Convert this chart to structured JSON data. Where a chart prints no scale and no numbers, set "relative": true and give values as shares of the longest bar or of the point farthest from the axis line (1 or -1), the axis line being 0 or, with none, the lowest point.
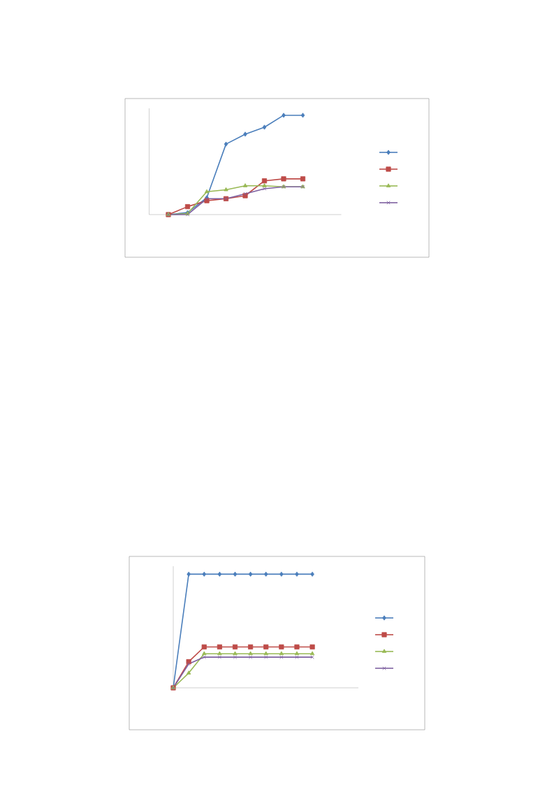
{
  "chart_data": [
    {
      "type": "line",
      "relative": true,
      "categories": [
        null,
        null,
        null,
        null,
        null,
        null,
        null,
        null
      ],
      "series": [
        {
          "color": "#4a7ebb",
          "marker": "diamond",
          "values": [
            0,
            0.02,
            0.17,
            0.71,
            0.81,
            0.88,
            1,
            1
          ]
        },
        {
          "color": "#be4b48",
          "marker": "square",
          "values": [
            0,
            0.08,
            0.14,
            0.16,
            0.19,
            0.34,
            0.36,
            0.36
          ]
        },
        {
          "color": "#98b954",
          "marker": "triangle",
          "values": [
            0,
            0.01,
            0.23,
            0.25,
            0.29,
            0.29,
            0.28,
            0.28
          ]
        },
        {
          "color": "#7d60a0",
          "marker": "cross",
          "values": [
            0,
            0,
            0.16,
            0.16,
            0.21,
            0.26,
            0.28,
            0.28
          ]
        }
      ]
    },
    {
      "type": "line",
      "relative": true,
      "categories": [
        null,
        null,
        null,
        null,
        null,
        null,
        null,
        null,
        null,
        null
      ],
      "series": [
        {
          "color": "#4a7ebb",
          "marker": "diamond",
          "values": [
            0,
            1,
            1,
            1,
            1,
            1,
            1,
            1,
            1,
            1
          ]
        },
        {
          "color": "#be4b48",
          "marker": "square",
          "values": [
            0,
            0.23,
            0.36,
            0.36,
            0.36,
            0.36,
            0.36,
            0.36,
            0.36,
            0.36
          ]
        },
        {
          "color": "#98b954",
          "marker": "triangle",
          "values": [
            0,
            0.13,
            0.3,
            0.3,
            0.3,
            0.3,
            0.3,
            0.3,
            0.3,
            0.3
          ]
        },
        {
          "color": "#7d60a0",
          "marker": "cross",
          "values": [
            0,
            0.21,
            0.27,
            0.27,
            0.27,
            0.27,
            0.27,
            0.27,
            0.27,
            0.27
          ]
        }
      ]
    }
  ]
}
